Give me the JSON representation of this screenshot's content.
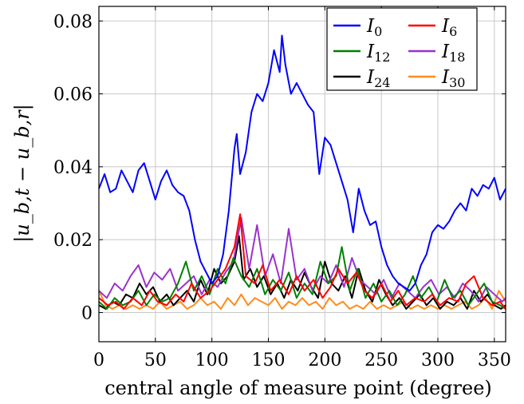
{
  "chart_data": {
    "type": "line",
    "xlabel": "central angle of measure point (degree)",
    "ylabel": "|u_b,t − u_b,r|",
    "xlim": [
      0,
      360
    ],
    "ylim": [
      -0.008,
      0.084
    ],
    "x_ticks": [
      0,
      50,
      100,
      150,
      200,
      250,
      300,
      350
    ],
    "y_ticks": [
      0,
      0.02,
      0.04,
      0.06,
      0.08
    ],
    "x_tick_labels": [
      "0",
      "50",
      "100",
      "150",
      "200",
      "250",
      "300",
      "350"
    ],
    "y_tick_labels": [
      "0",
      "0.02",
      "0.04",
      "0.06",
      "0.08"
    ],
    "grid": true,
    "legend_position": "top-right",
    "series": [
      {
        "name": "I0",
        "label_main": "I",
        "label_sub": "0",
        "color": "#0000ff",
        "x": [
          0,
          5,
          10,
          15,
          20,
          25,
          30,
          35,
          40,
          45,
          50,
          55,
          60,
          65,
          70,
          75,
          80,
          85,
          90,
          95,
          100,
          105,
          110,
          115,
          120,
          122,
          125,
          130,
          135,
          140,
          145,
          150,
          155,
          160,
          162,
          165,
          170,
          175,
          180,
          185,
          190,
          195,
          200,
          205,
          210,
          215,
          220,
          225,
          230,
          235,
          240,
          245,
          250,
          255,
          260,
          265,
          270,
          275,
          280,
          285,
          290,
          295,
          300,
          305,
          310,
          315,
          320,
          325,
          330,
          335,
          340,
          345,
          350,
          355,
          360
        ],
        "values": [
          0.034,
          0.038,
          0.033,
          0.034,
          0.039,
          0.036,
          0.033,
          0.039,
          0.041,
          0.036,
          0.031,
          0.036,
          0.039,
          0.035,
          0.033,
          0.032,
          0.028,
          0.02,
          0.014,
          0.011,
          0.008,
          0.01,
          0.016,
          0.028,
          0.045,
          0.049,
          0.038,
          0.044,
          0.055,
          0.06,
          0.058,
          0.063,
          0.072,
          0.066,
          0.076,
          0.068,
          0.06,
          0.063,
          0.06,
          0.057,
          0.055,
          0.038,
          0.048,
          0.046,
          0.041,
          0.036,
          0.031,
          0.022,
          0.034,
          0.028,
          0.024,
          0.025,
          0.018,
          0.013,
          0.01,
          0.008,
          0.007,
          0.006,
          0.008,
          0.013,
          0.016,
          0.022,
          0.024,
          0.023,
          0.025,
          0.028,
          0.03,
          0.028,
          0.034,
          0.032,
          0.035,
          0.034,
          0.037,
          0.031,
          0.034
        ]
      },
      {
        "name": "I6",
        "label_main": "I",
        "label_sub": "6",
        "color": "#ff0000",
        "x": [
          0,
          8,
          15,
          22,
          30,
          38,
          45,
          52,
          60,
          68,
          75,
          82,
          90,
          98,
          105,
          112,
          120,
          125,
          130,
          138,
          145,
          152,
          160,
          168,
          175,
          182,
          190,
          198,
          205,
          212,
          220,
          228,
          235,
          242,
          250,
          258,
          265,
          272,
          280,
          288,
          295,
          302,
          310,
          318,
          325,
          332,
          340,
          348,
          355,
          360
        ],
        "values": [
          0.004,
          0.002,
          0.003,
          0.001,
          0.004,
          0.002,
          0.006,
          0.003,
          0.002,
          0.005,
          0.003,
          0.008,
          0.004,
          0.006,
          0.009,
          0.012,
          0.018,
          0.027,
          0.01,
          0.008,
          0.013,
          0.006,
          0.009,
          0.005,
          0.01,
          0.006,
          0.009,
          0.004,
          0.007,
          0.012,
          0.008,
          0.011,
          0.006,
          0.004,
          0.008,
          0.003,
          0.006,
          0.002,
          0.004,
          0.003,
          0.005,
          0.002,
          0.004,
          0.003,
          0.008,
          0.01,
          0.004,
          0.002,
          0.003,
          0.001
        ]
      },
      {
        "name": "I12",
        "label_main": "I",
        "label_sub": "12",
        "color": "#008000",
        "x": [
          0,
          7,
          14,
          21,
          28,
          35,
          42,
          49,
          56,
          63,
          70,
          77,
          84,
          91,
          98,
          105,
          112,
          119,
          126,
          133,
          140,
          147,
          154,
          161,
          168,
          175,
          182,
          189,
          196,
          203,
          210,
          215,
          222,
          229,
          236,
          243,
          250,
          257,
          264,
          271,
          278,
          285,
          292,
          299,
          306,
          313,
          320,
          327,
          334,
          341,
          348,
          355,
          360
        ],
        "values": [
          0.003,
          0.001,
          0.004,
          0.002,
          0.003,
          0.006,
          0.002,
          0.005,
          0.003,
          0.004,
          0.008,
          0.014,
          0.006,
          0.01,
          0.005,
          0.012,
          0.008,
          0.015,
          0.01,
          0.007,
          0.012,
          0.005,
          0.009,
          0.006,
          0.011,
          0.004,
          0.008,
          0.005,
          0.014,
          0.008,
          0.01,
          0.018,
          0.006,
          0.012,
          0.004,
          0.008,
          0.003,
          0.006,
          0.002,
          0.005,
          0.01,
          0.004,
          0.007,
          0.003,
          0.009,
          0.004,
          0.006,
          0.002,
          0.005,
          0.008,
          0.003,
          0.002,
          0.001
        ]
      },
      {
        "name": "I18",
        "label_main": "I",
        "label_sub": "18",
        "color": "#9933cc",
        "x": [
          0,
          7,
          14,
          21,
          28,
          35,
          42,
          49,
          56,
          63,
          70,
          77,
          84,
          91,
          98,
          105,
          112,
          119,
          126,
          133,
          140,
          147,
          154,
          161,
          168,
          175,
          182,
          189,
          196,
          203,
          210,
          217,
          224,
          231,
          238,
          245,
          252,
          259,
          266,
          273,
          280,
          287,
          294,
          301,
          308,
          315,
          322,
          329,
          336,
          343,
          350,
          357,
          360
        ],
        "values": [
          0.006,
          0.004,
          0.008,
          0.006,
          0.01,
          0.013,
          0.007,
          0.011,
          0.009,
          0.012,
          0.006,
          0.008,
          0.01,
          0.005,
          0.009,
          0.007,
          0.011,
          0.014,
          0.026,
          0.012,
          0.024,
          0.01,
          0.016,
          0.008,
          0.023,
          0.009,
          0.012,
          0.006,
          0.01,
          0.008,
          0.013,
          0.007,
          0.015,
          0.009,
          0.007,
          0.005,
          0.009,
          0.004,
          0.008,
          0.006,
          0.004,
          0.007,
          0.009,
          0.005,
          0.007,
          0.004,
          0.008,
          0.006,
          0.003,
          0.007,
          0.005,
          0.003,
          0.004
        ]
      },
      {
        "name": "I24",
        "label_main": "I",
        "label_sub": "24",
        "color": "#000000",
        "x": [
          0,
          6,
          12,
          18,
          24,
          30,
          36,
          42,
          48,
          54,
          60,
          66,
          72,
          78,
          84,
          90,
          96,
          102,
          108,
          114,
          120,
          124,
          128,
          134,
          140,
          146,
          152,
          158,
          164,
          170,
          176,
          182,
          188,
          194,
          200,
          206,
          212,
          218,
          224,
          230,
          236,
          242,
          248,
          254,
          260,
          266,
          272,
          278,
          284,
          290,
          296,
          302,
          308,
          314,
          320,
          326,
          332,
          338,
          344,
          350,
          356,
          360
        ],
        "values": [
          0.002,
          0.001,
          0.003,
          0.002,
          0.005,
          0.004,
          0.008,
          0.005,
          0.007,
          0.003,
          0.005,
          0.002,
          0.004,
          0.006,
          0.003,
          0.009,
          0.005,
          0.012,
          0.008,
          0.01,
          0.014,
          0.021,
          0.009,
          0.012,
          0.007,
          0.01,
          0.005,
          0.008,
          0.004,
          0.009,
          0.006,
          0.011,
          0.007,
          0.004,
          0.014,
          0.008,
          0.006,
          0.01,
          0.004,
          0.012,
          0.006,
          0.003,
          0.009,
          0.005,
          0.002,
          0.004,
          0.001,
          0.003,
          0.005,
          0.002,
          0.004,
          0.001,
          0.003,
          0.002,
          0.004,
          0.001,
          0.006,
          0.003,
          0.005,
          0.002,
          0.001,
          0.002
        ]
      },
      {
        "name": "I30",
        "label_main": "I",
        "label_sub": "30",
        "color": "#ff8c1a",
        "x": [
          0,
          6,
          12,
          18,
          24,
          30,
          36,
          42,
          48,
          54,
          60,
          66,
          72,
          78,
          84,
          90,
          96,
          102,
          108,
          114,
          120,
          126,
          132,
          138,
          144,
          150,
          156,
          162,
          168,
          174,
          180,
          186,
          192,
          198,
          204,
          210,
          216,
          222,
          228,
          234,
          240,
          246,
          252,
          258,
          264,
          270,
          276,
          282,
          288,
          294,
          300,
          306,
          312,
          318,
          324,
          330,
          336,
          342,
          348,
          354,
          360
        ],
        "values": [
          0.006,
          0.002,
          0.001,
          0.002,
          0.001,
          0.002,
          0.001,
          0.002,
          0.001,
          0.003,
          0.001,
          0.002,
          0.003,
          0.001,
          0.002,
          0.004,
          0.002,
          0.003,
          0.001,
          0.004,
          0.002,
          0.005,
          0.002,
          0.004,
          0.003,
          0.002,
          0.004,
          0.001,
          0.003,
          0.002,
          0.004,
          0.002,
          0.003,
          0.001,
          0.004,
          0.002,
          0.003,
          0.001,
          0.002,
          0.001,
          0.003,
          0.001,
          0.002,
          0.001,
          0.002,
          0.003,
          0.001,
          0.002,
          0.001,
          0.002,
          0.001,
          0.002,
          0.001,
          0.002,
          0.003,
          0.001,
          0.002,
          0.004,
          0.001,
          0.006,
          0.003
        ]
      }
    ]
  }
}
